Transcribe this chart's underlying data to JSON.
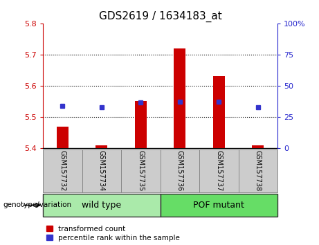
{
  "title": "GDS2619 / 1634183_at",
  "samples": [
    "GSM157732",
    "GSM157734",
    "GSM157735",
    "GSM157736",
    "GSM157737",
    "GSM157738"
  ],
  "red_values": [
    5.47,
    5.41,
    5.55,
    5.72,
    5.63,
    5.41
  ],
  "blue_values": [
    5.535,
    5.532,
    5.547,
    5.548,
    5.548,
    5.532
  ],
  "ylim": [
    5.4,
    5.8
  ],
  "y2lim": [
    0,
    100
  ],
  "yticks": [
    5.4,
    5.5,
    5.6,
    5.7,
    5.8
  ],
  "y2ticks": [
    0,
    25,
    50,
    75,
    100
  ],
  "red_color": "#cc0000",
  "blue_color": "#3333cc",
  "bar_bottom": 5.4,
  "bar_width": 0.3,
  "groups": [
    {
      "label": "wild type",
      "indices": [
        0,
        1,
        2
      ],
      "color": "#aaeaaa"
    },
    {
      "label": "POF mutant",
      "indices": [
        3,
        4,
        5
      ],
      "color": "#66dd66"
    }
  ],
  "group_label": "genotype/variation",
  "legend_red": "transformed count",
  "legend_blue": "percentile rank within the sample",
  "left_tick_color": "#cc0000",
  "right_tick_color": "#2222cc",
  "sample_box_color": "#cccccc",
  "sample_box_edge": "#888888",
  "grid_color": "#000000",
  "title_fontsize": 11,
  "tick_fontsize": 8,
  "sample_fontsize": 7,
  "legend_fontsize": 7.5,
  "group_fontsize": 9,
  "grid_lines": [
    5.5,
    5.6,
    5.7
  ]
}
